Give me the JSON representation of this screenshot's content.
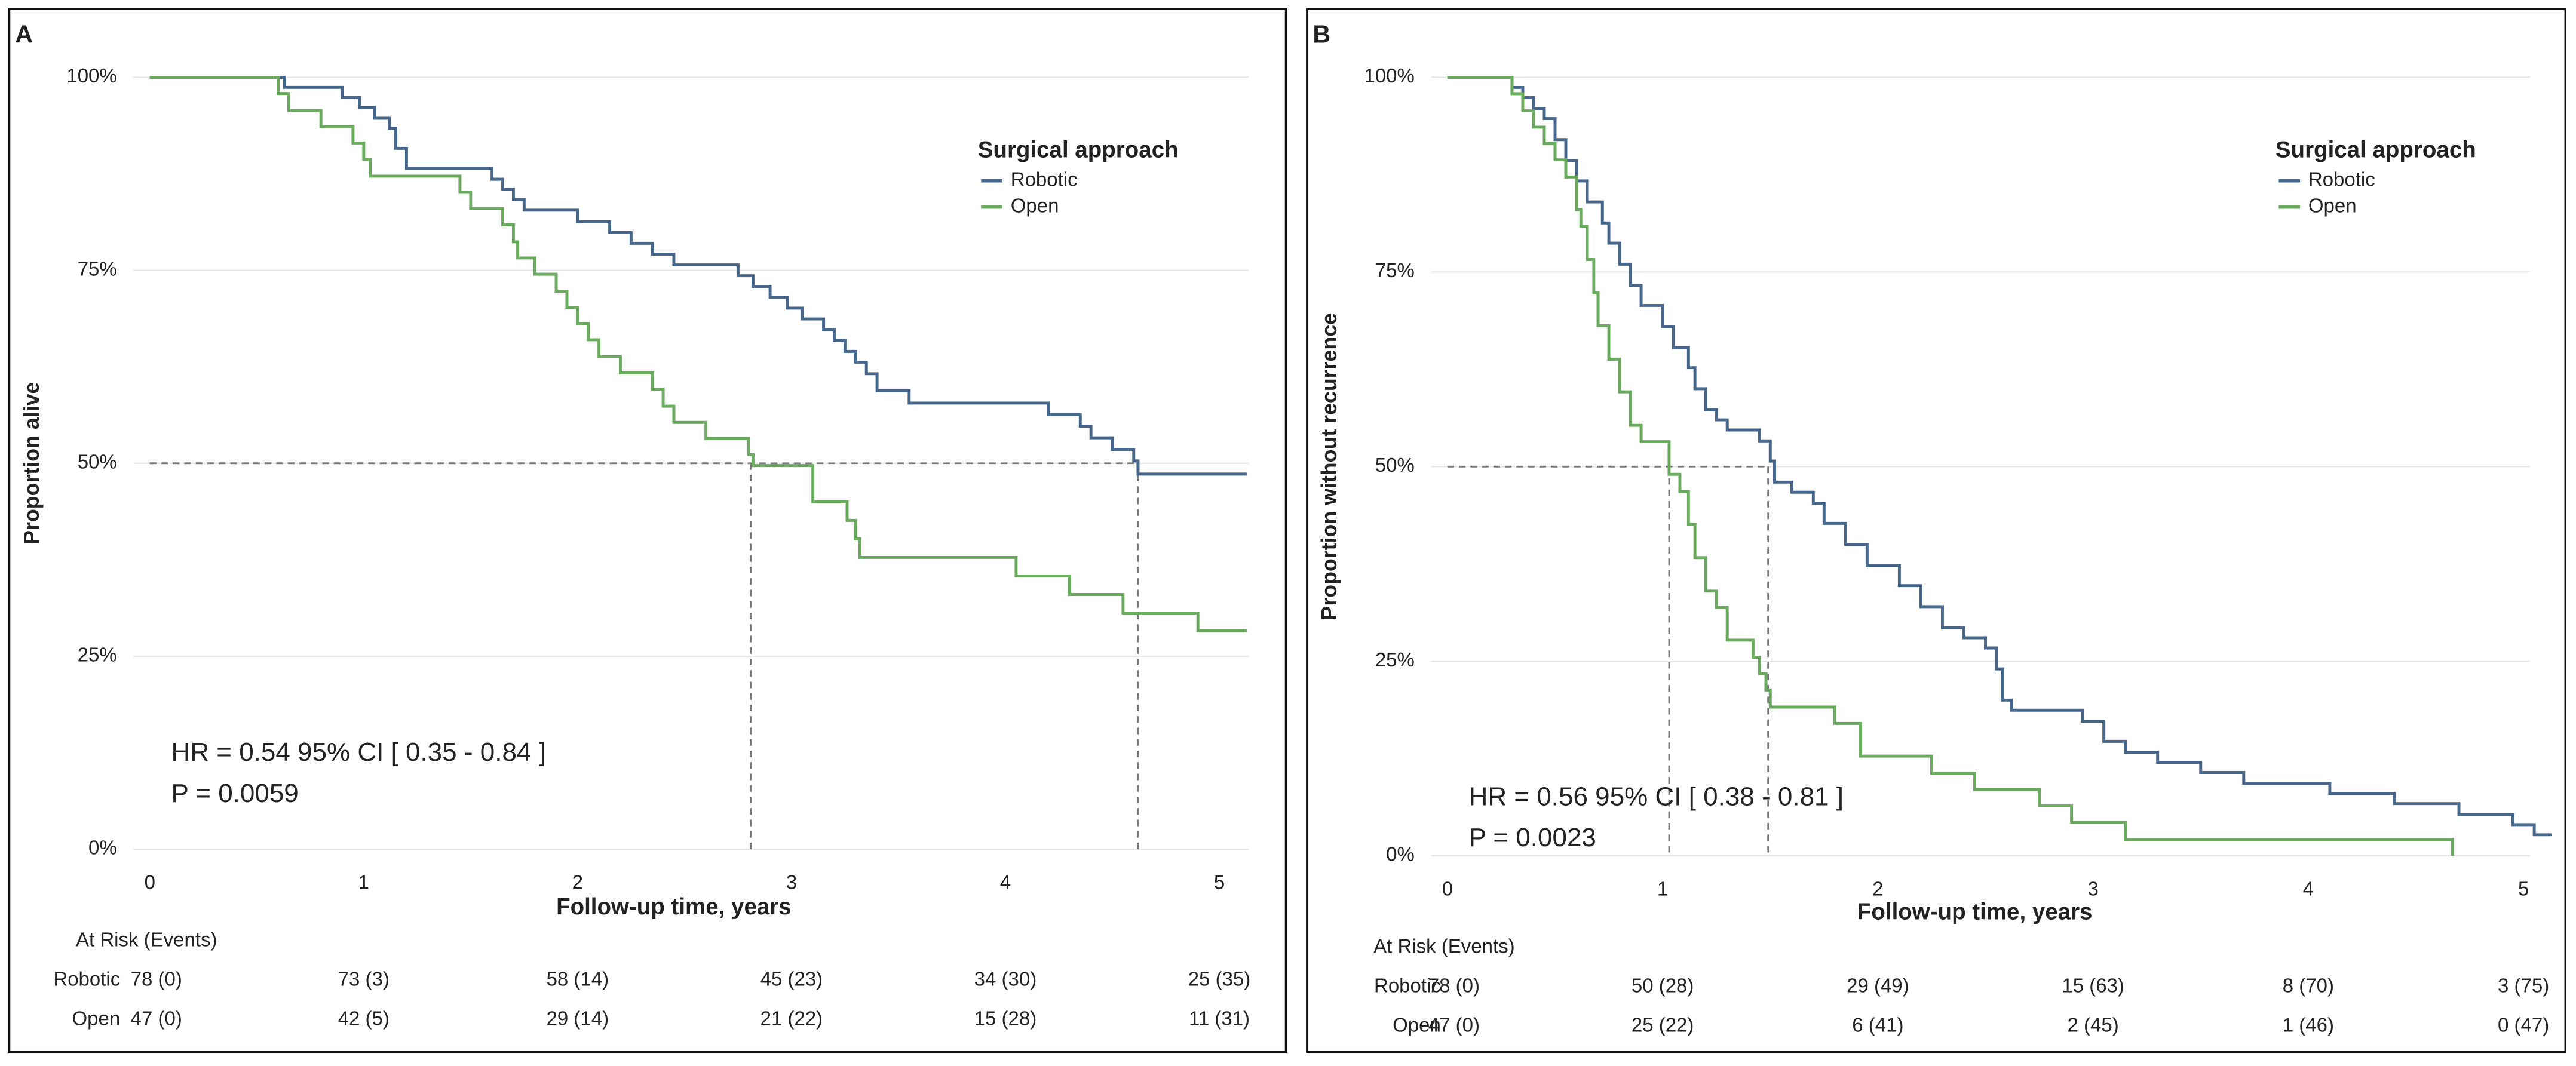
{
  "chart_data": [
    {
      "type": "step",
      "panel_label": "A",
      "ylabel": "Proportion alive",
      "xlabel": "Follow-up time, years",
      "legend_title": "Surgical approach",
      "xlim": [
        0,
        5.13
      ],
      "ylim": [
        0,
        100
      ],
      "xticks": [
        0,
        1,
        2,
        3,
        4,
        5
      ],
      "yticks": [
        {
          "value": 0,
          "label": "0%"
        },
        {
          "value": 25,
          "label": "25%"
        },
        {
          "value": 50,
          "label": "50%"
        },
        {
          "value": 75,
          "label": "75%"
        },
        {
          "value": 100,
          "label": "100%"
        }
      ],
      "grid": true,
      "reference_y": 50,
      "annotations": [
        "HR = 0.54 95% CI [ 0.35 - 0.84 ]",
        "P = 0.0059"
      ],
      "series": [
        {
          "name": "Robotic",
          "color": "#46668c",
          "median": 4.62,
          "x": [
            0,
            0.63,
            0.9,
            0.98,
            1.05,
            1.12,
            1.15,
            1.2,
            1.6,
            1.65,
            1.7,
            1.75,
            2.0,
            2.15,
            2.25,
            2.35,
            2.45,
            2.75,
            2.82,
            2.9,
            2.98,
            3.05,
            3.15,
            3.2,
            3.25,
            3.3,
            3.35,
            3.4,
            3.55,
            4.2,
            4.35,
            4.4,
            4.5,
            4.6,
            4.62,
            5.13
          ],
          "values": [
            100,
            98.7,
            97.4,
            96.1,
            94.7,
            93.4,
            90.8,
            88.2,
            86.8,
            85.5,
            84.2,
            82.8,
            81.3,
            79.9,
            78.5,
            77.1,
            75.7,
            74.3,
            72.9,
            71.5,
            70.1,
            68.7,
            67.3,
            65.9,
            64.5,
            63.1,
            61.6,
            59.4,
            57.8,
            56.3,
            54.8,
            53.3,
            51.8,
            50.3,
            48.6,
            48.6
          ]
        },
        {
          "name": "Open",
          "color": "#6aaa5e",
          "median": 2.81,
          "x": [
            0,
            0.6,
            0.65,
            0.8,
            0.95,
            1.0,
            1.03,
            1.45,
            1.5,
            1.65,
            1.7,
            1.72,
            1.8,
            1.9,
            1.95,
            2.0,
            2.05,
            2.1,
            2.2,
            2.35,
            2.4,
            2.45,
            2.6,
            2.8,
            2.82,
            3.1,
            3.26,
            3.3,
            3.32,
            4.05,
            4.3,
            4.55,
            4.9,
            5.13
          ],
          "values": [
            100,
            97.9,
            95.7,
            93.6,
            91.5,
            89.4,
            87.2,
            85.1,
            83,
            80.9,
            78.7,
            76.6,
            74.5,
            72.3,
            70.2,
            68.1,
            66,
            63.8,
            61.7,
            59.6,
            57.4,
            55.3,
            53.2,
            51.1,
            49.7,
            45,
            42.6,
            40.2,
            37.8,
            35.4,
            33,
            30.6,
            28.3,
            28.3
          ]
        }
      ],
      "risk_table": {
        "title": "At Risk (Events)",
        "rows": [
          {
            "name": "Robotic",
            "values": [
              "78 (0)",
              "73 (3)",
              "58 (14)",
              "45 (23)",
              "34 (30)",
              "25 (35)"
            ]
          },
          {
            "name": "Open",
            "values": [
              "47 (0)",
              "42 (5)",
              "29 (14)",
              "21 (22)",
              "15 (28)",
              "11 (31)"
            ]
          }
        ]
      }
    },
    {
      "type": "step",
      "panel_label": "B",
      "ylabel": "Proportion without recurrence",
      "xlabel": "Follow-up time, years",
      "legend_title": "Surgical approach",
      "xlim": [
        0,
        5.13
      ],
      "ylim": [
        0,
        100
      ],
      "xticks": [
        0,
        1,
        2,
        3,
        4,
        5
      ],
      "yticks": [
        {
          "value": 0,
          "label": "0%"
        },
        {
          "value": 25,
          "label": "25%"
        },
        {
          "value": 50,
          "label": "50%"
        },
        {
          "value": 75,
          "label": "75%"
        },
        {
          "value": 100,
          "label": "100%"
        }
      ],
      "grid": true,
      "reference_y": 50,
      "annotations": [
        "HR = 0.56 95% CI [ 0.38 - 0.81 ]",
        "P = 0.0023"
      ],
      "series": [
        {
          "name": "Robotic",
          "color": "#46668c",
          "median": 1.49,
          "x": [
            0,
            0.3,
            0.35,
            0.4,
            0.45,
            0.5,
            0.55,
            0.6,
            0.65,
            0.72,
            0.75,
            0.8,
            0.85,
            0.9,
            1.0,
            1.05,
            1.12,
            1.15,
            1.2,
            1.25,
            1.3,
            1.45,
            1.5,
            1.52,
            1.6,
            1.7,
            1.75,
            1.85,
            1.95,
            2.1,
            2.2,
            2.3,
            2.4,
            2.5,
            2.55,
            2.58,
            2.62,
            2.95,
            3.05,
            3.15,
            3.3,
            3.5,
            3.7,
            4.1,
            4.4,
            4.7,
            4.95,
            5.05,
            5.13
          ],
          "values": [
            100,
            98.7,
            97.4,
            96,
            94.7,
            92,
            89.3,
            86.7,
            84,
            81.3,
            78.7,
            76,
            73.3,
            70.7,
            68,
            65.3,
            62.7,
            60,
            57.3,
            56,
            54.7,
            53.3,
            50.7,
            48,
            46.7,
            45.3,
            42.7,
            40,
            37.3,
            34.7,
            32,
            29.3,
            28,
            26.7,
            24,
            20,
            18.7,
            17.3,
            14.7,
            13.3,
            12,
            10.7,
            9.3,
            8,
            6.7,
            5.3,
            4,
            2.7,
            2.7
          ]
        },
        {
          "name": "Open",
          "color": "#6aaa5e",
          "median": 1.03,
          "x": [
            0,
            0.3,
            0.35,
            0.4,
            0.45,
            0.5,
            0.55,
            0.6,
            0.62,
            0.65,
            0.68,
            0.7,
            0.75,
            0.8,
            0.85,
            0.9,
            1.03,
            1.08,
            1.12,
            1.15,
            1.2,
            1.25,
            1.3,
            1.42,
            1.45,
            1.48,
            1.5,
            1.8,
            1.92,
            2.25,
            2.45,
            2.75,
            2.9,
            3.15,
            4.67
          ],
          "values": [
            100,
            97.9,
            95.7,
            93.6,
            91.5,
            89.4,
            87.2,
            83,
            80.9,
            76.6,
            72.3,
            68.1,
            63.8,
            59.6,
            55.3,
            53.2,
            49,
            46.8,
            42.6,
            38.3,
            34,
            31.9,
            27.7,
            25.5,
            23.4,
            21.3,
            19.1,
            17,
            12.8,
            10.6,
            8.5,
            6.4,
            4.3,
            2.1,
            0
          ]
        }
      ],
      "risk_table": {
        "title": "At Risk (Events)",
        "rows": [
          {
            "name": "Robotic",
            "values": [
              "78 (0)",
              "50 (28)",
              "29 (49)",
              "15 (63)",
              "8 (70)",
              "3 (75)"
            ]
          },
          {
            "name": "Open",
            "values": [
              "47 (0)",
              "25 (22)",
              "6 (41)",
              "2 (45)",
              "1 (46)",
              "0 (47)"
            ]
          }
        ]
      }
    }
  ]
}
